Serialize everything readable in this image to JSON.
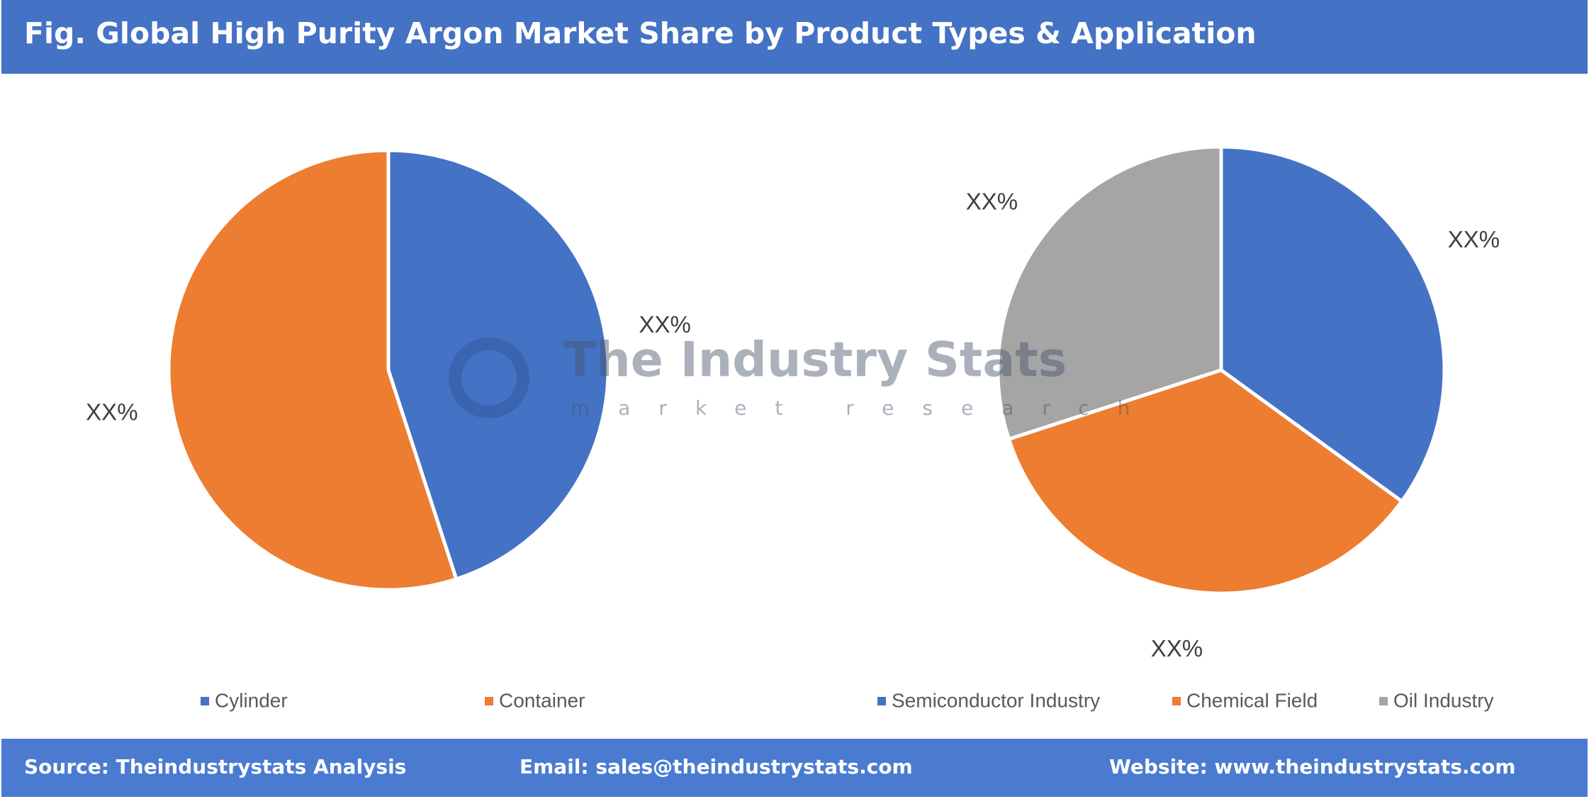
{
  "header": {
    "title": "Fig. Global High Purity Argon Market Share by Product Types & Application"
  },
  "watermark": {
    "title": "The Industry Stats",
    "subtitle": "market research"
  },
  "chart_data": [
    {
      "type": "pie",
      "categories": [
        "Cylinder",
        "Container"
      ],
      "values": [
        45,
        55
      ],
      "value_labels": [
        "XX%",
        "XX%"
      ],
      "colors": [
        "#4472c4",
        "#ed7d31"
      ],
      "legend": "bottom"
    },
    {
      "type": "pie",
      "categories": [
        "Semiconductor Industry",
        "Chemical Field",
        "Oil Industry"
      ],
      "values": [
        35,
        35,
        30
      ],
      "value_labels": [
        "XX%",
        "XX%",
        "XX%"
      ],
      "colors": [
        "#4472c4",
        "#ed7d31",
        "#a5a5a5"
      ],
      "legend": "bottom"
    }
  ],
  "footer": {
    "source": "Source: Theindustrystats Analysis",
    "email": "Email: sales@theindustrystats.com",
    "website": "Website: www.theindustrystats.com"
  }
}
